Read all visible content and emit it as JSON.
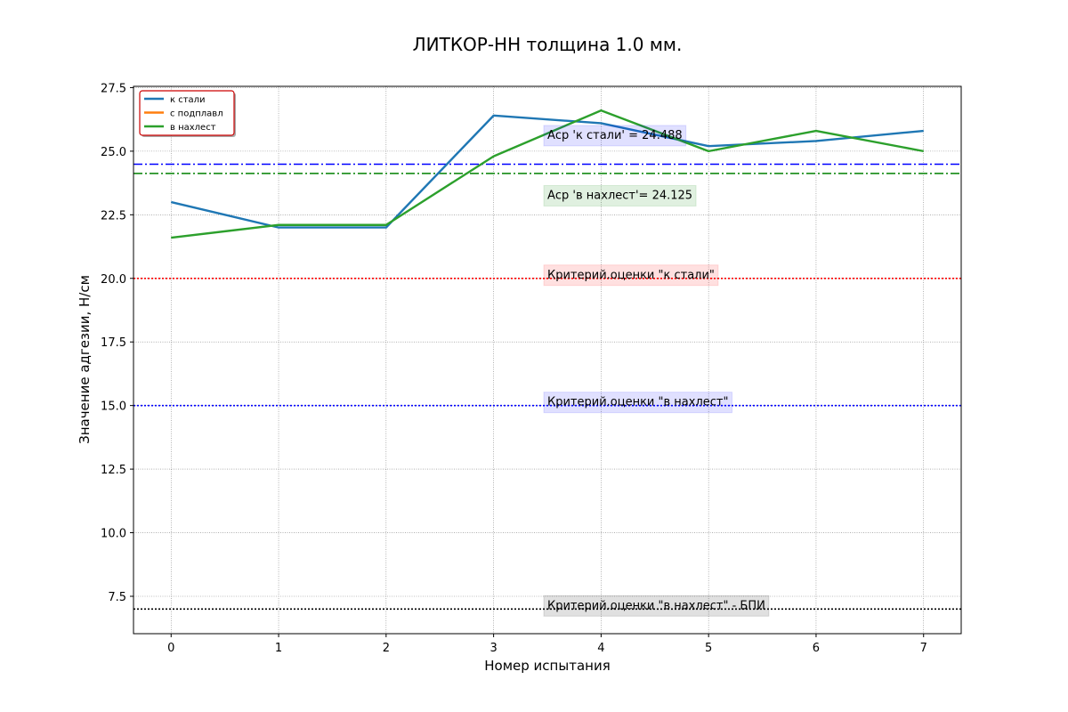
{
  "chart_data": {
    "type": "line",
    "title": "ЛИТКОР-НН толщина 1.0 мм.",
    "xlabel": "Номер испытания",
    "ylabel": "Значение адгезии, Н/см",
    "x": [
      0,
      1,
      2,
      3,
      4,
      5,
      6,
      7
    ],
    "series": [
      {
        "name": "к стали",
        "color": "#1f77b4",
        "values": [
          23.0,
          22.0,
          22.0,
          26.4,
          26.1,
          25.2,
          25.4,
          25.8
        ]
      },
      {
        "name": "с подплавл",
        "color": "#ff7f0e",
        "values": [
          null,
          null,
          null,
          null,
          null,
          null,
          null,
          null
        ]
      },
      {
        "name": "в нахлест",
        "color": "#2ca02c",
        "values": [
          21.6,
          22.1,
          22.1,
          24.8,
          26.6,
          25.0,
          25.8,
          25.0
        ]
      }
    ],
    "hlines": [
      {
        "value": 24.488,
        "color": "#0000ff",
        "style": "dashdot"
      },
      {
        "value": 24.125,
        "color": "#008000",
        "style": "dashdot"
      },
      {
        "value": 20,
        "color": "#ff0000",
        "style": "dotted"
      },
      {
        "value": 15,
        "color": "#0000ff",
        "style": "dotted"
      },
      {
        "value": 7,
        "color": "#000000",
        "style": "dotted"
      }
    ],
    "annotations": [
      {
        "text": "Аср 'к стали' = 24.488",
        "x": 3.5,
        "y": 25.488,
        "color": "#0000ff"
      },
      {
        "text": "Аср 'в нахлест'= 24.125",
        "x": 3.5,
        "y": 23.125,
        "color": "#008000"
      },
      {
        "text": "Критерий.оценки \"к стали\"",
        "x": 3.5,
        "y": 20,
        "color": "#ff0000"
      },
      {
        "text": "Критерий.оценки \"в нахлест\"",
        "x": 3.5,
        "y": 15,
        "color": "#0000ff"
      },
      {
        "text": "Критерий.оценки \"в нахлест\" - БПИ",
        "x": 3.5,
        "y": 7,
        "color": "#000000"
      }
    ],
    "xlim": [
      -0.35,
      7.35
    ],
    "ylim": [
      6.03,
      27.55
    ],
    "xticks": [
      0,
      1,
      2,
      3,
      4,
      5,
      6,
      7
    ],
    "yticks": [
      {
        "value": 7.5,
        "label": "7.5"
      },
      {
        "value": 10,
        "label": "10.0"
      },
      {
        "value": 12.5,
        "label": "12.5"
      },
      {
        "value": 15,
        "label": "15.0"
      },
      {
        "value": 17.5,
        "label": "17.5"
      },
      {
        "value": 20,
        "label": "20.0"
      },
      {
        "value": 22.5,
        "label": "22.5"
      },
      {
        "value": 25,
        "label": "25.0"
      },
      {
        "value": 27.5,
        "label": "27.5"
      }
    ],
    "grid": true,
    "legend": "upper left"
  }
}
